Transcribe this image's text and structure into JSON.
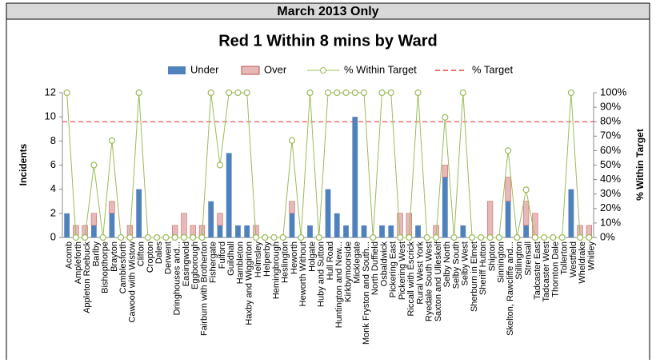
{
  "header": "March 2013 Only",
  "chart_data": {
    "type": "bar",
    "stacked": true,
    "title": "Red 1 Within 8 mins by Ward",
    "ylabel": "Incidents",
    "y2label": "% Within Target",
    "categories": [
      "Acomb",
      "Ampleforth",
      "Appleton Roebuck",
      "Barlby",
      "Bishopthorpe",
      "Brayton",
      "Camblesforth",
      "Cawood with Wistow",
      "Clifton",
      "Cropton",
      "Dales",
      "Derwent",
      "Dringhouses and...",
      "Easingwold",
      "Eggborough",
      "Fairburn with Brotherton",
      "Fishergate",
      "Fulford",
      "Guildhall",
      "Hambleton",
      "Haxby and Wigginton",
      "Helmsley",
      "Helperby",
      "Hemingbrough",
      "Heslington",
      "Heworth",
      "Heworth Without",
      "Holgate",
      "Huby and Sutton",
      "Hull Road",
      "Huntington and New...",
      "Kirkbymoorside",
      "Micklegate",
      "Monk Fryston and South...",
      "North Duffield",
      "Osbaldwick",
      "Pickering East",
      "Pickering West",
      "Riccall with Escrick",
      "Rural West York",
      "Ryedale South West",
      "Saxton and Ulleskelf",
      "Selby North",
      "Selby South",
      "Selby West",
      "Sherburn in Elmet",
      "Sheriff Hutton",
      "Shipton",
      "Sinnington",
      "Skelton, Rawcliffe and...",
      "Stillington",
      "Strensall",
      "Tadcaster East",
      "Tadcaster West",
      "Thornton Dale",
      "Tollerton",
      "Westfield",
      "Wheldrake",
      "Whitley"
    ],
    "series": [
      {
        "name": "Under",
        "color": "#4f81bd",
        "values": [
          2,
          0,
          0,
          1,
          0,
          2,
          0,
          0,
          4,
          0,
          0,
          0,
          0,
          0,
          0,
          0,
          3,
          1,
          7,
          1,
          1,
          0,
          0,
          0,
          0,
          2,
          0,
          1,
          0,
          4,
          2,
          1,
          10,
          1,
          0,
          1,
          1,
          0,
          0,
          1,
          0,
          0,
          5,
          0,
          1,
          0,
          0,
          0,
          0,
          3,
          0,
          1,
          0,
          0,
          0,
          0,
          4,
          0,
          0
        ]
      },
      {
        "name": "Over",
        "color": "#e6b9b8",
        "values": [
          0,
          1,
          1,
          1,
          0,
          1,
          0,
          1,
          0,
          0,
          0,
          0,
          1,
          2,
          1,
          1,
          0,
          1,
          0,
          0,
          0,
          1,
          0,
          0,
          0,
          1,
          0,
          0,
          0,
          0,
          0,
          0,
          0,
          0,
          0,
          0,
          0,
          2,
          2,
          0,
          0,
          1,
          1,
          0,
          0,
          0,
          0,
          3,
          0,
          2,
          0,
          2,
          2,
          0,
          0,
          0,
          0,
          1,
          1
        ]
      },
      {
        "name": "% Within Target",
        "type": "line",
        "axis": "y2",
        "color": "#9bbb59",
        "values": [
          100,
          0,
          0,
          50,
          0,
          67,
          0,
          0,
          100,
          0,
          0,
          0,
          0,
          0,
          0,
          0,
          100,
          50,
          100,
          100,
          100,
          0,
          0,
          0,
          0,
          67,
          0,
          100,
          0,
          100,
          100,
          100,
          100,
          100,
          0,
          100,
          100,
          0,
          0,
          100,
          0,
          0,
          83,
          0,
          100,
          0,
          0,
          0,
          0,
          60,
          0,
          33,
          0,
          0,
          0,
          0,
          100,
          0,
          0
        ]
      }
    ],
    "target_line": {
      "name": "% Target",
      "value": 80,
      "axis": "y2",
      "color": "#e8413c"
    },
    "ylim": [
      0,
      12
    ],
    "yticks": [
      0,
      2,
      4,
      6,
      8,
      10,
      12
    ],
    "y2lim": [
      0,
      100
    ],
    "y2ticks": [
      {
        "value": 0,
        "label": "0%"
      },
      {
        "value": 10,
        "label": "10%"
      },
      {
        "value": 20,
        "label": "20%"
      },
      {
        "value": 30,
        "label": "30%"
      },
      {
        "value": 40,
        "label": "40%"
      },
      {
        "value": 50,
        "label": "50%"
      },
      {
        "value": 60,
        "label": "60%"
      },
      {
        "value": 70,
        "label": "70%"
      },
      {
        "value": 80,
        "label": "80%"
      },
      {
        "value": 90,
        "label": "90%"
      },
      {
        "value": 100,
        "label": "100%"
      }
    ],
    "legend": "top"
  }
}
